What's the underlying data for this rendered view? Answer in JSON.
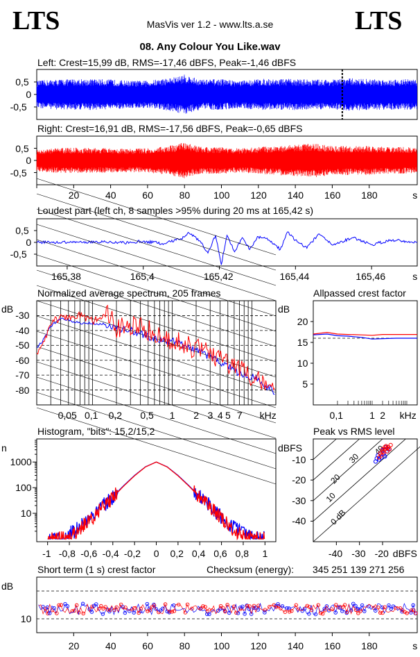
{
  "header": {
    "logo_left": "LTS",
    "logo_right": "LTS",
    "app_title": "MasVis ver 1.2 - www.lts.a.se",
    "file_title": "08. Any Colour You Like.wav"
  },
  "colors": {
    "left": "#0000ff",
    "right": "#ff0000",
    "axis": "#000000"
  },
  "chart_data": [
    {
      "type": "area",
      "id": "left_waveform",
      "title": "Left: Crest=15,99 dB, RMS=-17,46 dBFS, Peak=-1,46 dBFS",
      "ylim": [
        -1,
        1
      ],
      "yticks": [
        "0,5",
        "0",
        "-0,5"
      ],
      "xlim": [
        0,
        206
      ],
      "marker_x": 165.42,
      "color": "#0000ff",
      "envelope_x": [
        0,
        10,
        20,
        30,
        40,
        50,
        60,
        70,
        75,
        80,
        85,
        90,
        100,
        110,
        120,
        130,
        140,
        150,
        160,
        170,
        180,
        190,
        200,
        206
      ],
      "envelope_amp": [
        0.55,
        0.6,
        0.62,
        0.62,
        0.6,
        0.55,
        0.55,
        0.65,
        0.7,
        0.8,
        0.68,
        0.6,
        0.62,
        0.55,
        0.62,
        0.62,
        0.62,
        0.6,
        0.6,
        0.65,
        0.62,
        0.6,
        0.62,
        0.6
      ]
    },
    {
      "type": "area",
      "id": "right_waveform",
      "title": "Right: Crest=16,91 dB, RMS=-17,56 dBFS, Peak=-0,65 dBFS",
      "ylim": [
        -1,
        1
      ],
      "yticks": [
        "0,5",
        "0",
        "-0,5"
      ],
      "xlim": [
        0,
        206
      ],
      "color": "#ff0000",
      "xticks": [
        "20",
        "40",
        "60",
        "80",
        "100",
        "120",
        "140",
        "160",
        "180",
        "s"
      ],
      "envelope_x": [
        0,
        10,
        20,
        30,
        40,
        50,
        60,
        70,
        75,
        80,
        85,
        90,
        100,
        110,
        120,
        130,
        140,
        150,
        160,
        170,
        180,
        190,
        200,
        206
      ],
      "envelope_amp": [
        0.45,
        0.5,
        0.52,
        0.52,
        0.5,
        0.48,
        0.5,
        0.58,
        0.65,
        0.75,
        0.62,
        0.55,
        0.55,
        0.5,
        0.55,
        0.6,
        0.65,
        0.7,
        0.6,
        0.6,
        0.6,
        0.55,
        0.55,
        0.5
      ]
    },
    {
      "type": "line",
      "id": "loudest_part",
      "title": "Loudest part (left  ch, 8 samples >95% during 20 ms at 165,42 s)",
      "ylim": [
        -1,
        1
      ],
      "yticks": [
        "0,5",
        "0",
        "-0,5"
      ],
      "xticks": [
        "165,38",
        "165,4",
        "165,42",
        "165,44",
        "165,46",
        "s"
      ],
      "xlim": [
        165.372,
        165.472
      ],
      "color": "#0000ff",
      "x": [
        165.372,
        165.38,
        165.39,
        165.395,
        165.4,
        165.405,
        165.41,
        165.412,
        165.415,
        165.417,
        165.419,
        165.4205,
        165.422,
        165.424,
        165.426,
        165.428,
        165.43,
        165.433,
        165.436,
        165.438,
        165.44,
        165.443,
        165.446,
        165.45,
        165.455,
        165.46,
        165.465,
        165.472
      ],
      "y": [
        0.0,
        0.0,
        0.02,
        -0.02,
        0.05,
        -0.05,
        0.15,
        0.4,
        0.05,
        -0.45,
        0.3,
        -0.95,
        0.3,
        -0.4,
        0.2,
        -0.3,
        0.25,
        0.1,
        -0.3,
        0.45,
        0.1,
        -0.25,
        0.35,
        -0.1,
        0.2,
        -0.1,
        0.1,
        0.0
      ]
    },
    {
      "type": "line",
      "id": "avg_spectrum",
      "title": "Normalized average spectrum, 205 frames",
      "ylabel": "dB",
      "xunit": "kHz",
      "yticks": [
        "-30",
        "-40",
        "-50",
        "-60",
        "-70",
        "-80"
      ],
      "xticks": [
        "0,05",
        "0,1",
        "0,2",
        "0,5",
        "1",
        "2",
        "3",
        "4",
        "5",
        "7",
        "kHz"
      ],
      "series": [
        {
          "x": [
            0.02,
            0.025,
            0.03,
            0.04,
            0.05,
            0.07,
            0.1,
            0.15,
            0.2,
            0.3,
            0.5,
            0.7,
            1,
            1.5,
            2,
            3,
            5,
            7,
            10,
            15,
            20
          ],
          "y": [
            -52,
            -45,
            -37,
            -32,
            -33,
            -35,
            -35,
            -36,
            -39,
            -40,
            -44,
            -46,
            -47,
            -51,
            -53,
            -58,
            -64,
            -69,
            -71,
            -77,
            -82
          ]
        },
        {
          "x": [
            0.02,
            0.025,
            0.03,
            0.04,
            0.05,
            0.07,
            0.1,
            0.15,
            0.2,
            0.3,
            0.5,
            0.7,
            1,
            1.5,
            2,
            3,
            5,
            7,
            10,
            15,
            20
          ],
          "y": [
            -55,
            -46,
            -35,
            -31,
            -32,
            -29,
            -34,
            -28,
            -38,
            -36,
            -40,
            -44,
            -46,
            -50,
            -52,
            -56,
            -62,
            -67,
            -70,
            -74,
            -78
          ]
        }
      ]
    },
    {
      "type": "line",
      "id": "allpassed_crest",
      "title": "Allpassed crest factor",
      "ylabel": "dB",
      "xunit": "kHz",
      "yticks": [
        "20",
        "15",
        "10",
        "5"
      ],
      "xticks": [
        "0,1",
        "1",
        "2",
        "kHz"
      ],
      "series": [
        {
          "x": [
            0.02,
            0.05,
            0.1,
            0.2,
            0.5,
            1,
            2,
            5,
            10,
            20
          ],
          "y": [
            16.8,
            17.0,
            16.6,
            16.5,
            16.2,
            15.8,
            15.9,
            16.0,
            16.0,
            16.0
          ]
        },
        {
          "x": [
            0.02,
            0.05,
            0.1,
            0.2,
            0.5,
            1,
            2,
            5,
            10,
            20
          ],
          "y": [
            17.0,
            17.4,
            17.0,
            16.9,
            16.8,
            16.7,
            16.9,
            16.9,
            16.9,
            16.9
          ]
        }
      ]
    },
    {
      "type": "line",
      "id": "histogram",
      "title": "Histogram, \"bits\": 15,2/15,2",
      "ylabel": "n",
      "yticks": [
        "1000",
        "100",
        "10"
      ],
      "xticks": [
        "-1",
        "-0,8",
        "-0,6",
        "-0,4",
        "-0,2",
        "0",
        "0,2",
        "0,4",
        "0,6",
        "0,8",
        "1"
      ],
      "series": [
        {
          "x": [
            -1,
            -0.9,
            -0.8,
            -0.7,
            -0.6,
            -0.5,
            -0.4,
            -0.3,
            -0.2,
            -0.1,
            0,
            0.1,
            0.2,
            0.3,
            0.4,
            0.5,
            0.6,
            0.7,
            0.8,
            0.9,
            1
          ],
          "y": [
            1,
            1,
            1.5,
            3,
            7,
            18,
            45,
            120,
            300,
            650,
            1000,
            650,
            300,
            120,
            45,
            18,
            7,
            3,
            1.5,
            1,
            1
          ]
        },
        {
          "x": [
            -1,
            -0.9,
            -0.8,
            -0.7,
            -0.6,
            -0.5,
            -0.4,
            -0.3,
            -0.2,
            -0.1,
            0,
            0.1,
            0.2,
            0.3,
            0.4,
            0.5,
            0.6,
            0.7,
            0.8,
            0.9,
            1
          ],
          "y": [
            1,
            1,
            1.2,
            2.5,
            6,
            16,
            42,
            115,
            290,
            640,
            1000,
            640,
            290,
            115,
            42,
            16,
            6,
            2.5,
            1.2,
            1,
            1
          ]
        }
      ]
    },
    {
      "type": "scatter",
      "id": "peak_vs_rms",
      "title": "Peak vs RMS level",
      "ylabel": "dBFS",
      "xunit": "dBFS",
      "yticks": [
        "-10",
        "-20",
        "-30",
        "-40"
      ],
      "xticks": [
        "-40",
        "-30",
        "-20",
        "dBFS"
      ],
      "diag_labels": [
        "40",
        "30",
        "20",
        "10",
        "0 dB"
      ],
      "series": [
        {
          "x": [
            -22,
            -21,
            -20,
            -19,
            -18,
            -20.5,
            -19.5,
            -23,
            -21.5,
            -18.5,
            -20,
            -19,
            -22.5,
            -17.5
          ],
          "y": [
            -8,
            -7,
            -6,
            -5,
            -6,
            -9,
            -7.5,
            -11,
            -10,
            -4,
            -5.5,
            -8.5,
            -9.5,
            -5
          ]
        },
        {
          "x": [
            -21,
            -20,
            -19,
            -18,
            -17.5,
            -20.5,
            -19.5,
            -18.5,
            -21.5,
            -17,
            -16.5,
            -19,
            -20,
            -18
          ],
          "y": [
            -7,
            -6,
            -5,
            -4.5,
            -4,
            -8,
            -6.5,
            -3.5,
            -9,
            -5,
            -3,
            -4,
            -5,
            -6
          ]
        }
      ]
    },
    {
      "type": "scatter",
      "id": "short_term_crest",
      "title": "Short term (1 s) crest factor",
      "ylabel": "dB",
      "yticks": [
        "10"
      ],
      "xticks": [
        "20",
        "40",
        "60",
        "80",
        "100",
        "120",
        "140",
        "160",
        "180",
        "s"
      ],
      "xlim": [
        0,
        206
      ],
      "ylim": [
        5,
        25
      ]
    }
  ],
  "checksum": {
    "label": "Checksum (energy):",
    "value": "345 251 139 271 256"
  }
}
